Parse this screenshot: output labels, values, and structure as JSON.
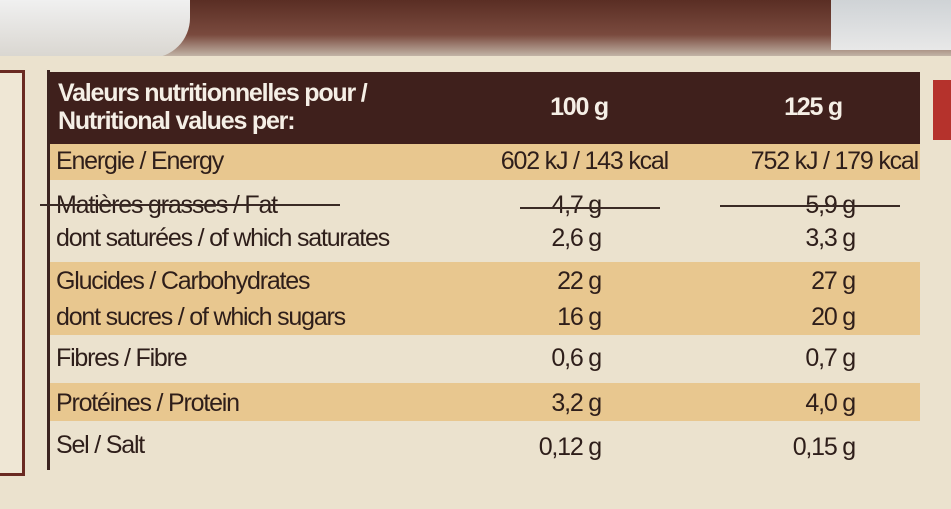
{
  "header": {
    "title_line1": "Valeurs nutritionnelles pour /",
    "title_line2": "Nutritional values per:",
    "col1": "100 g",
    "col2": "125 g"
  },
  "rows": [
    {
      "label": "Energie / Energy",
      "v100": "602 kJ / 143 kcal",
      "v125": "752 kJ / 179 kcal"
    },
    {
      "label": "Matières grasses / Fat",
      "v100": "4,7 g",
      "v125": "5,9 g"
    },
    {
      "label": "dont saturées / of which saturates",
      "v100": "2,6 g",
      "v125": "3,3 g"
    },
    {
      "label": "Glucides / Carbohydrates",
      "v100": "22 g",
      "v125": "27 g"
    },
    {
      "label": "dont sucres / of which sugars",
      "v100": "16 g",
      "v125": "20 g"
    },
    {
      "label": "Fibres / Fibre",
      "v100": "0,6 g",
      "v125": "0,7 g"
    },
    {
      "label": "Protéines / Protein",
      "v100": "3,2 g",
      "v125": "4,0 g"
    },
    {
      "label": "Sel / Salt",
      "v100": "0,12 g",
      "v125": "0,15 g"
    }
  ],
  "colors": {
    "header_bg": "#3f201c",
    "band_bg": "#e8c78f",
    "card_bg": "#ebe2ce",
    "text": "#2e1e1a"
  }
}
